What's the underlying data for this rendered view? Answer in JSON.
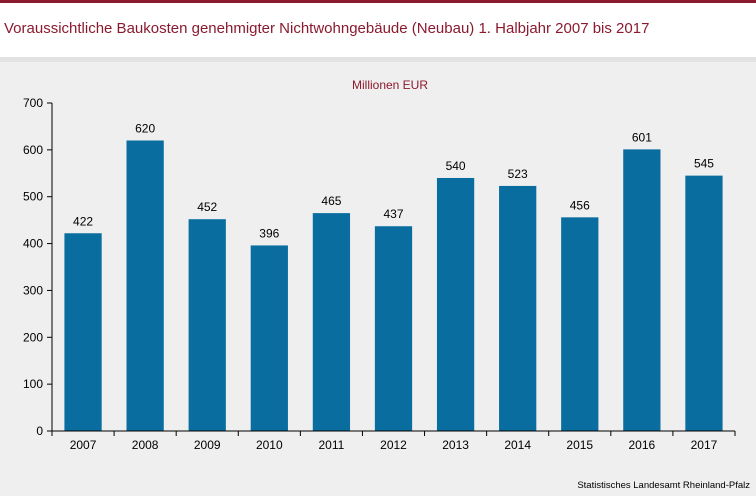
{
  "title": "Voraussichtliche Baukosten genehmigter Nichtwohngebäude (Neubau) 1. Halbjahr 2007 bis 2017",
  "source": "Statistisches Landesamt Rheinland-Pfalz",
  "colors": {
    "accent": "#8b1a2e",
    "bar": "#0a6d9f",
    "panel": "#efefef"
  },
  "chart_data": {
    "type": "bar",
    "unit_label": "Millionen EUR",
    "categories": [
      "2007",
      "2008",
      "2009",
      "2010",
      "2011",
      "2012",
      "2013",
      "2014",
      "2015",
      "2016",
      "2017"
    ],
    "values": [
      422,
      620,
      452,
      396,
      465,
      437,
      540,
      523,
      456,
      601,
      545
    ],
    "ylim": [
      0,
      700
    ],
    "yticks": [
      0,
      100,
      200,
      300,
      400,
      500,
      600,
      700
    ],
    "grid": false,
    "legend": "none"
  }
}
